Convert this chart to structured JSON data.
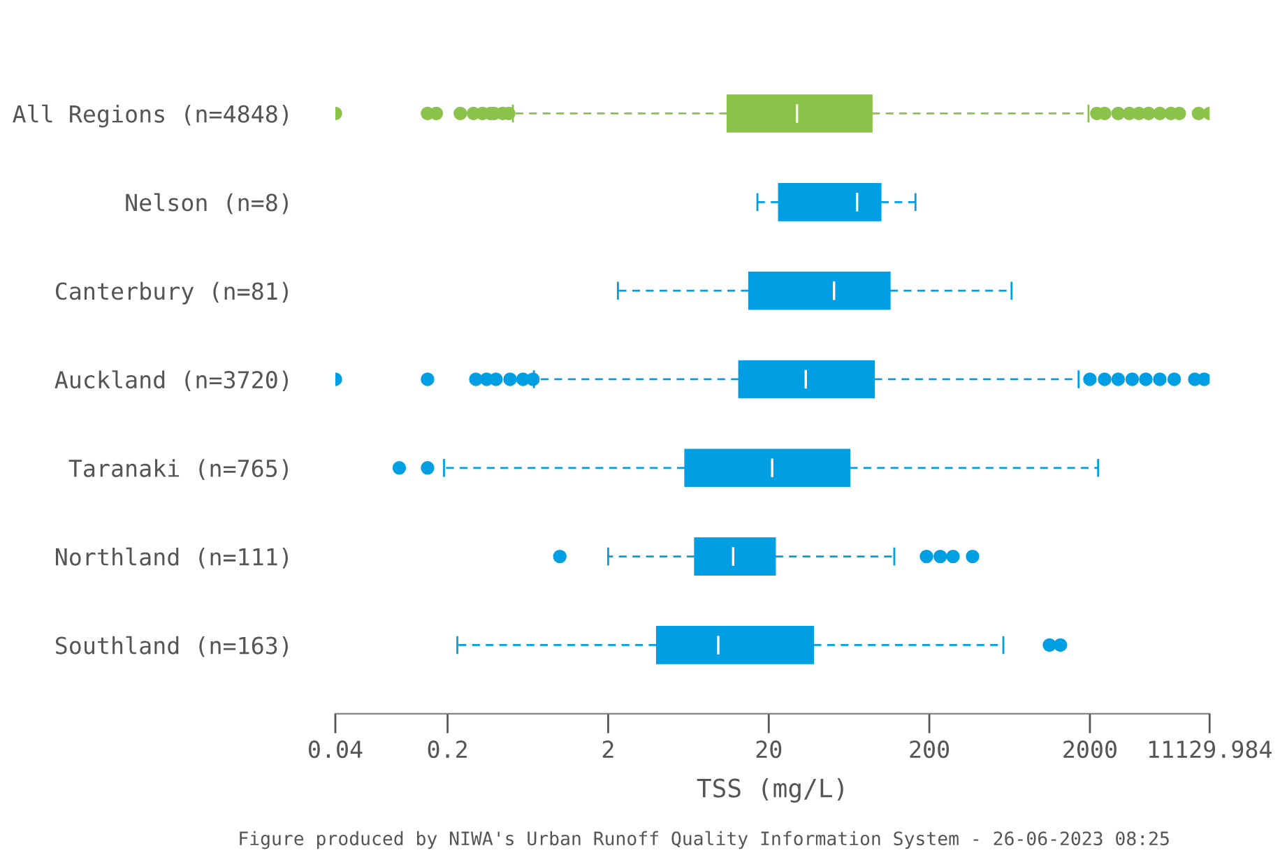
{
  "chart_data": {
    "type": "box",
    "orientation": "horizontal",
    "log": "x",
    "xlabel": "TSS (mg/L)",
    "categories": [
      "All Regions (n=4848)",
      "Nelson (n=8)",
      "Canterbury (n=81)",
      "Auckland (n=3720)",
      "Taranaki (n=765)",
      "Northland (n=111)",
      "Southland (n=163)"
    ],
    "colors": [
      "#8bc34a",
      "#009fe3",
      "#009fe3",
      "#009fe3",
      "#009fe3",
      "#009fe3",
      "#009fe3"
    ],
    "boxes": [
      {
        "low": 0.51,
        "q1": 11,
        "median": 30,
        "q3": 88,
        "high": 1960,
        "outliers": [
          0.04,
          0.15,
          0.17,
          0.24,
          0.29,
          0.33,
          0.37,
          0.39,
          0.44,
          0.48,
          2210,
          2470,
          3000,
          3520,
          4040,
          4640,
          5450,
          6400,
          7200,
          9500,
          11130
        ]
      },
      {
        "low": 17,
        "q1": 23,
        "median": 71,
        "q3": 100,
        "high": 164
      },
      {
        "low": 2.3,
        "q1": 15,
        "median": 51,
        "q3": 114,
        "high": 650
      },
      {
        "low": 0.69,
        "q1": 13,
        "median": 34,
        "q3": 91,
        "high": 1700,
        "outliers": [
          0.04,
          0.15,
          0.3,
          0.35,
          0.4,
          0.49,
          0.59,
          0.68,
          2000,
          2470,
          3000,
          3670,
          4460,
          5450,
          6700,
          9000,
          10300
        ]
      },
      {
        "low": 0.19,
        "q1": 6,
        "median": 21,
        "q3": 64,
        "high": 2250,
        "outliers": [
          0.1,
          0.15
        ]
      },
      {
        "low": 2,
        "q1": 6.9,
        "median": 12,
        "q3": 22,
        "high": 121,
        "outliers": [
          1,
          192,
          234,
          281,
          372
        ]
      },
      {
        "low": 0.23,
        "q1": 4,
        "median": 9.7,
        "q3": 38,
        "high": 578,
        "outliers": [
          1120,
          1310
        ]
      }
    ],
    "xlim": [
      0.04,
      11129.984
    ],
    "xticks": [
      0.04,
      0.2,
      2,
      20,
      200,
      2000,
      11129.984
    ],
    "grid": false,
    "annotations": [
      "Figure produced by NIWA's Urban Runoff Quality Information System - 26-06-2023 08:25"
    ]
  }
}
